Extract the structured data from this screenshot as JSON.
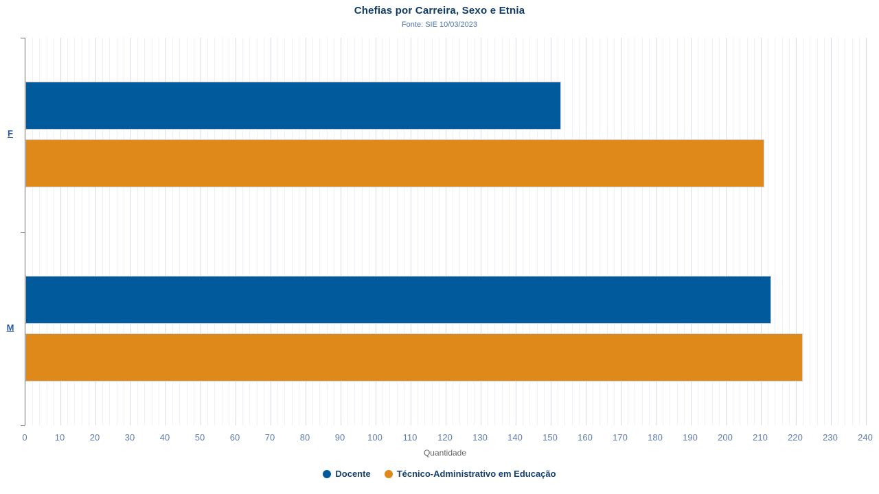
{
  "title": "Chefias por Carreira, Sexo e Etnia",
  "subtitle": "Fonte: SIE 10/03/2023",
  "xlabel": "Quantidade",
  "colors": {
    "docente": "#005a9b",
    "tae": "#e0891b",
    "title": "#0e3a66",
    "subtitle": "#4d74a7",
    "tick_label": "#5d7cb2",
    "grid_major": "#d9d9ec",
    "grid_minor": "#efeff8",
    "axis": "#6e6e6e",
    "category_label": "#2a5aa8",
    "legend_text": "#16406e"
  },
  "chart_data": {
    "type": "bar",
    "orientation": "horizontal",
    "title": "Chefias por Carreira, Sexo e Etnia",
    "subtitle": "Fonte: SIE 10/03/2023",
    "xlabel": "Quantidade",
    "categories": [
      "F",
      "M"
    ],
    "series": [
      {
        "name": "Docente",
        "color_key": "docente",
        "values": [
          153,
          213
        ]
      },
      {
        "name": "Técnico-Administrativo em Educação",
        "color_key": "tae",
        "values": [
          211,
          222
        ]
      }
    ],
    "xlim": [
      0,
      240
    ],
    "x_tick_step": 10,
    "x_minor_step": 2,
    "grid": true,
    "legend_position": "bottom"
  }
}
